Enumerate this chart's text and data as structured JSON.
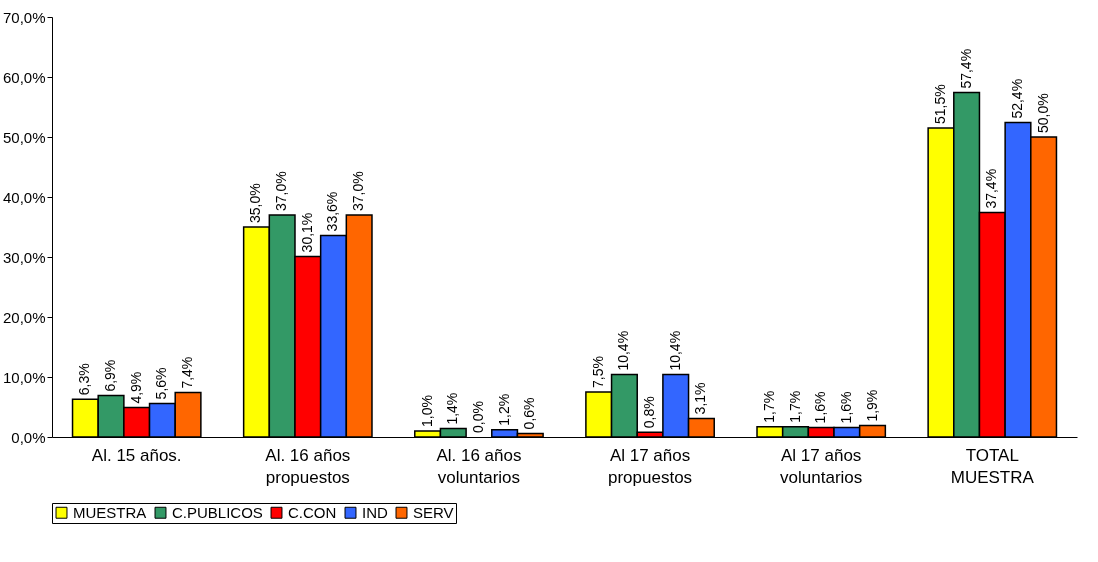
{
  "chart_data": {
    "type": "bar",
    "categories": [
      "Al. 15 años.",
      "Al. 16 años\npropuestos",
      "Al. 16 años\nvoluntarios",
      "Al 17 años\npropuestos",
      "Al 17 años\nvoluntarios",
      "TOTAL\nMUESTRA"
    ],
    "series": [
      {
        "name": "MUESTRA",
        "color": "#ffff00",
        "values": [
          6.3,
          35.0,
          1.0,
          7.5,
          1.7,
          51.5
        ],
        "value_labels": [
          "6,3%",
          "35,0%",
          "1,0%",
          "7,5%",
          "1,7%",
          "51,5%"
        ]
      },
      {
        "name": "C.PUBLICOS",
        "color": "#339966",
        "values": [
          6.9,
          37.0,
          1.4,
          10.4,
          1.7,
          57.4
        ],
        "value_labels": [
          "6,9%",
          "37,0%",
          "1,4%",
          "10,4%",
          "1,7%",
          "57,4%"
        ]
      },
      {
        "name": "C.CON",
        "color": "#ff0000",
        "values": [
          4.9,
          30.1,
          0.0,
          0.8,
          1.6,
          37.4
        ],
        "value_labels": [
          "4,9%",
          "30,1%",
          "0,0%",
          "0,8%",
          "1,6%",
          "37,4%"
        ]
      },
      {
        "name": "IND",
        "color": "#3366ff",
        "values": [
          5.6,
          33.6,
          1.2,
          10.4,
          1.6,
          52.4
        ],
        "value_labels": [
          "5,6%",
          "33,6%",
          "1,2%",
          "10,4%",
          "1,6%",
          "52,4%"
        ]
      },
      {
        "name": "SERV",
        "color": "#ff6600",
        "values": [
          7.4,
          37.0,
          0.6,
          3.1,
          1.9,
          50.0
        ],
        "value_labels": [
          "7,4%",
          "37,0%",
          "0,6%",
          "3,1%",
          "1,9%",
          "50,0%"
        ]
      }
    ],
    "ylim": [
      0,
      70
    ],
    "yticks": [
      {
        "value": 0,
        "label": "0,0%"
      },
      {
        "value": 10,
        "label": "10,0%"
      },
      {
        "value": 20,
        "label": "20,0%"
      },
      {
        "value": 30,
        "label": "30,0%"
      },
      {
        "value": 40,
        "label": "40,0%"
      },
      {
        "value": 50,
        "label": "50,0%"
      },
      {
        "value": 60,
        "label": "60,0%"
      },
      {
        "value": 70,
        "label": "70,0%"
      }
    ],
    "grid": false,
    "legend": "bottom"
  }
}
